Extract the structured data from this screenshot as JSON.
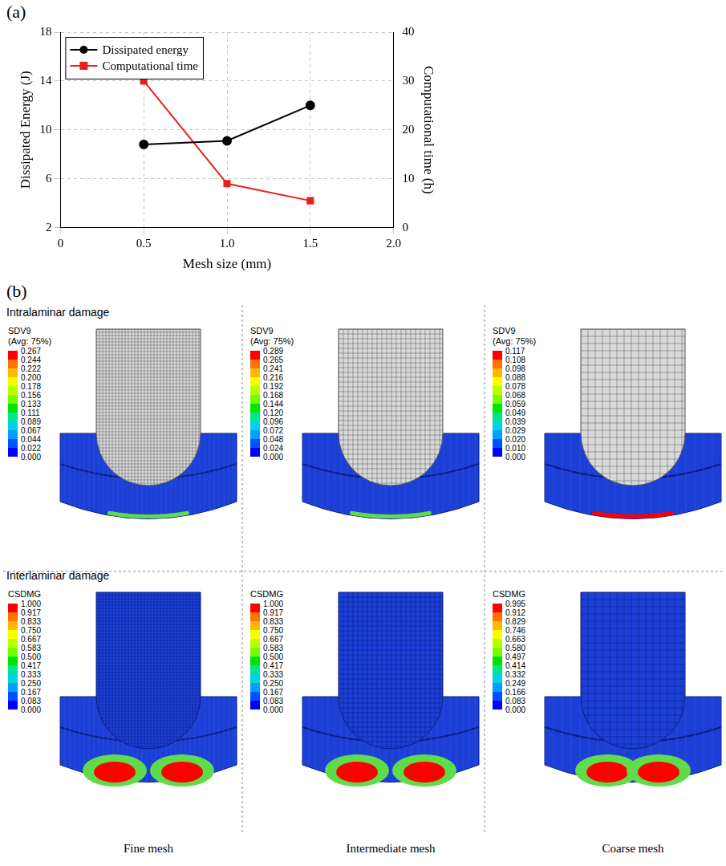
{
  "chart_data": {
    "type": "line",
    "x": [
      0.5,
      1,
      1.5
    ],
    "series": [
      {
        "name": "Dissipated energy",
        "color": "#000000",
        "values": [
          8.8,
          9.1,
          12.0
        ],
        "marker": "circle",
        "line_style": "solid"
      },
      {
        "name": "Computational time",
        "color": "#e8201c",
        "values": [
          30,
          9,
          5.5
        ],
        "marker": "square",
        "line_style": "solid",
        "axis": "y2"
      }
    ],
    "xlim": [
      0,
      2
    ],
    "xticks": [
      0,
      0.5,
      1,
      1.5,
      2
    ],
    "ylim": [
      2,
      18
    ],
    "yticks": [
      2,
      6,
      10,
      14,
      18
    ],
    "y2lim": [
      0,
      40
    ],
    "y2ticks": [
      0,
      10,
      20,
      30,
      40
    ],
    "x_label": "Mesh size (mm)",
    "y_label": "Dissipated Energy (J)",
    "y2_label": "Computational time (h)",
    "grid": true,
    "legend": "upper left"
  },
  "panel_labels": {
    "a": "(a)",
    "b": "(b)"
  },
  "contour_figure": {
    "columns": [
      "Fine mesh",
      "Intermediate mesh",
      "Coarse mesh"
    ],
    "rows": [
      {
        "title": "Intralaminar damage",
        "legends": [
          {
            "title": "SDV9",
            "subtitle": "(Avg: 75%)",
            "color": "#5fdc4a",
            "levels": [
              "0.267",
              "0.244",
              "0.222",
              "0.200",
              "0.178",
              "0.156",
              "0.133",
              "0.111",
              "0.089",
              "0.067",
              "0.044",
              "0.022",
              "0.000"
            ]
          },
          {
            "title": "SDV9",
            "subtitle": "(Avg: 75%)",
            "color": "#5fdc4a",
            "levels": [
              "0.289",
              "0.265",
              "0.241",
              "0.216",
              "0.192",
              "0.168",
              "0.144",
              "0.120",
              "0.096",
              "0.072",
              "0.048",
              "0.024",
              "0.000"
            ]
          },
          {
            "title": "SDV9",
            "subtitle": "(Avg: 75%)",
            "color": "#ff0000",
            "levels": [
              "0.117",
              "0.108",
              "0.098",
              "0.088",
              "0.078",
              "0.068",
              "0.059",
              "0.049",
              "0.039",
              "0.029",
              "0.020",
              "0.010",
              "0.000"
            ]
          }
        ]
      },
      {
        "title": "Interlaminar damage",
        "legends": [
          {
            "title": "CSDMG",
            "color": "#ff0000",
            "levels": [
              "1.000",
              "0.917",
              "0.833",
              "0.750",
              "0.667",
              "0.583",
              "0.500",
              "0.417",
              "0.333",
              "0.250",
              "0.167",
              "0.083",
              "0.000"
            ]
          },
          {
            "title": "CSDMG",
            "color": "#ff0000",
            "levels": [
              "1.000",
              "0.917",
              "0.833",
              "0.750",
              "0.667",
              "0.583",
              "0.500",
              "0.417",
              "0.333",
              "0.250",
              "0.167",
              "0.083",
              "0.000"
            ]
          },
          {
            "title": "CSDMG",
            "color": "#ff0000",
            "levels": [
              "0.995",
              "0.912",
              "0.829",
              "0.746",
              "0.663",
              "0.580",
              "0.497",
              "0.414",
              "0.332",
              "0.249",
              "0.166",
              "0.083",
              "0.000"
            ]
          }
        ]
      }
    ]
  }
}
